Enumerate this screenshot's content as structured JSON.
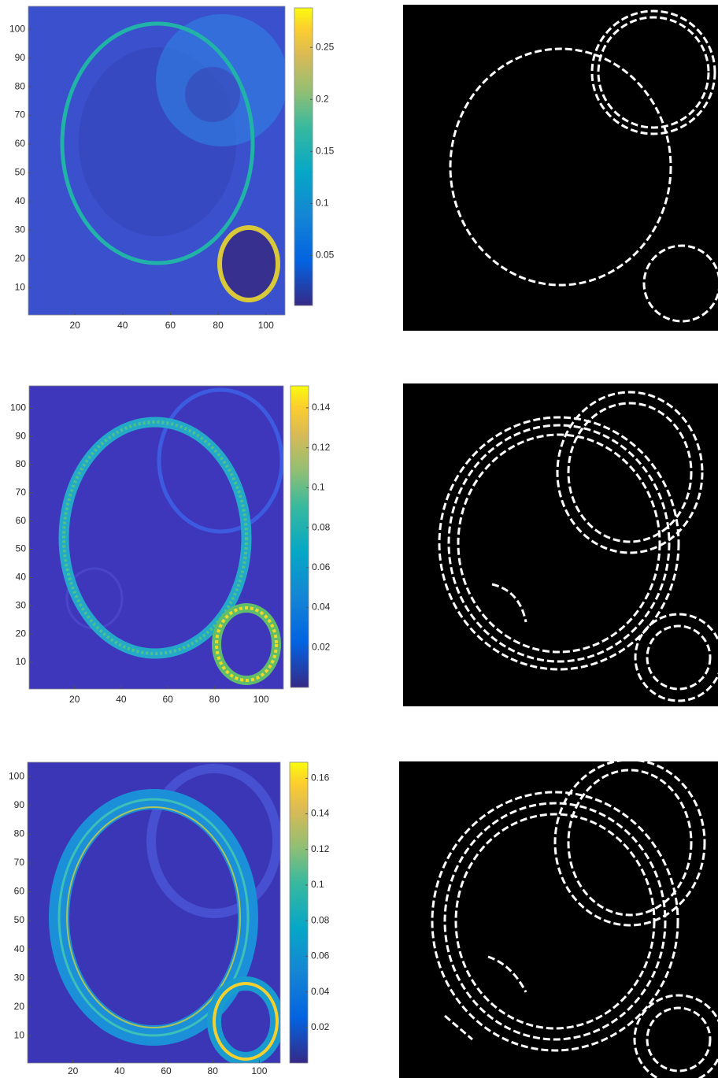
{
  "chart_data": [
    {
      "type": "heatmap",
      "xlim": [
        0.5,
        108
      ],
      "ylim": [
        0.5,
        108
      ],
      "xticks": [
        20,
        40,
        60,
        80,
        100
      ],
      "yticks": [
        10,
        20,
        30,
        40,
        50,
        60,
        70,
        80,
        90,
        100
      ],
      "clim": [
        0.002,
        0.288
      ],
      "cticks": [
        0.05,
        0.1,
        0.15,
        0.2,
        0.25
      ]
    },
    {
      "type": "heatmap",
      "xlim": [
        0.5,
        109.6
      ],
      "ylim": [
        0.5,
        107.9
      ],
      "xticks": [
        20,
        40,
        60,
        80,
        100
      ],
      "yticks": [
        10,
        20,
        30,
        40,
        50,
        60,
        70,
        80,
        90,
        100
      ],
      "clim": [
        0,
        0.151
      ],
      "cticks": [
        0.02,
        0.04,
        0.06,
        0.08,
        0.1,
        0.12,
        0.14
      ]
    },
    {
      "type": "heatmap",
      "xlim": [
        0.5,
        109
      ],
      "ylim": [
        0.5,
        105
      ],
      "xticks": [
        20,
        40,
        60,
        80,
        100
      ],
      "yticks": [
        10,
        20,
        30,
        40,
        50,
        60,
        70,
        80,
        90,
        100
      ],
      "clim": [
        0,
        0.169
      ],
      "cticks": [
        0.02,
        0.04,
        0.06,
        0.08,
        0.1,
        0.12,
        0.14,
        0.16
      ]
    }
  ]
}
